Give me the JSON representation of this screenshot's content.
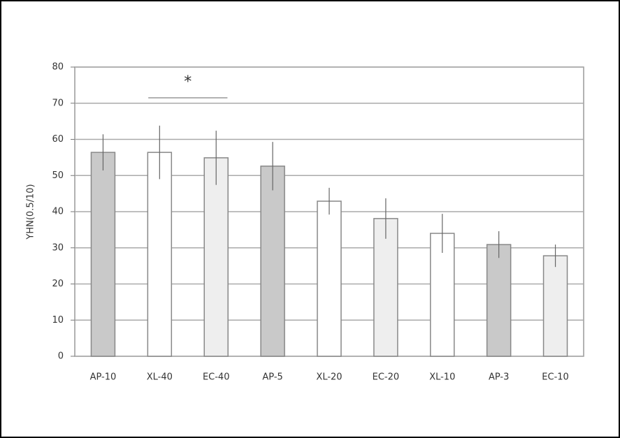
{
  "chart_data": {
    "type": "bar",
    "y_label": "YHN(0.5/10)",
    "categories": [
      "AP-10",
      "XL-40",
      "EC-40",
      "AP-5",
      "XL-20",
      "EC-20",
      "XL-10",
      "AP-3",
      "EC-10"
    ],
    "values": [
      56.4,
      56.4,
      54.9,
      52.6,
      42.9,
      38.1,
      34.0,
      30.9,
      27.8
    ],
    "errors": [
      5.0,
      7.4,
      7.5,
      6.7,
      3.7,
      5.6,
      5.4,
      3.7,
      3.1
    ],
    "colors": [
      "#c9c9c9",
      "#ffffff",
      "#eeeeee",
      "#c9c9c9",
      "#ffffff",
      "#eeeeee",
      "#ffffff",
      "#c9c9c9",
      "#eeeeee"
    ],
    "annotation": "*",
    "ylim": [
      0,
      80
    ],
    "yticks": [
      0,
      10,
      20,
      30,
      40,
      50,
      60,
      70,
      80
    ],
    "grid": true
  }
}
